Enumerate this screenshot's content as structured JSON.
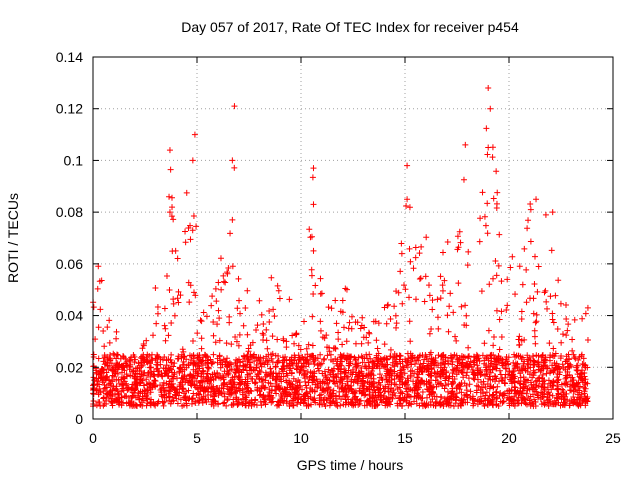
{
  "chart_data": {
    "type": "scatter",
    "title": "Day 057 of 2017, Rate Of TEC Index for receiver p454",
    "xlabel": "GPS time / hours",
    "ylabel": "ROTI / TECUs",
    "xlim": [
      0,
      25
    ],
    "ylim": [
      0,
      0.14
    ],
    "xticks": [
      "0",
      "5",
      "10",
      "15",
      "20",
      "25"
    ],
    "yticks": [
      "0",
      "0.02",
      "0.04",
      "0.06",
      "0.08",
      "0.1",
      "0.12",
      "0.14"
    ],
    "grid": true,
    "marker": "+",
    "color": "#ff0000",
    "series": [
      {
        "name": "ROTI",
        "envelope_x": [
          0,
          0.2,
          0.4,
          0.7,
          1.0,
          1.5,
          2.0,
          2.5,
          3.0,
          3.5,
          3.7,
          4.0,
          4.5,
          4.9,
          5.1,
          5.5,
          6.0,
          6.5,
          6.8,
          7.2,
          7.7,
          8.3,
          9.0,
          9.5,
          10.0,
          10.6,
          11.0,
          11.5,
          12.0,
          12.5,
          13.0,
          13.5,
          14.0,
          14.5,
          15.1,
          15.5,
          16.0,
          16.5,
          17.0,
          17.5,
          18.0,
          18.5,
          19.0,
          19.3,
          19.6,
          20.0,
          20.5,
          21.0,
          21.4,
          21.8,
          22.2,
          22.6,
          23.0,
          23.4,
          23.8
        ],
        "envelope_max": [
          0.05,
          0.065,
          0.06,
          0.04,
          0.035,
          0.03,
          0.025,
          0.03,
          0.055,
          0.06,
          0.1,
          0.07,
          0.09,
          0.11,
          0.06,
          0.04,
          0.065,
          0.06,
          0.12,
          0.05,
          0.05,
          0.055,
          0.06,
          0.045,
          0.04,
          0.097,
          0.05,
          0.045,
          0.06,
          0.045,
          0.04,
          0.04,
          0.045,
          0.045,
          0.098,
          0.07,
          0.08,
          0.06,
          0.07,
          0.07,
          0.106,
          0.08,
          0.128,
          0.11,
          0.08,
          0.065,
          0.06,
          0.085,
          0.065,
          0.08,
          0.06,
          0.05,
          0.04,
          0.045,
          0.05
        ],
        "baseline_range": [
          0.005,
          0.025
        ],
        "notable_points": [
          {
            "x": 3.7,
            "y": 0.104
          },
          {
            "x": 3.7,
            "y": 0.08
          },
          {
            "x": 4.9,
            "y": 0.11
          },
          {
            "x": 4.8,
            "y": 0.1
          },
          {
            "x": 6.8,
            "y": 0.121
          },
          {
            "x": 6.7,
            "y": 0.1
          },
          {
            "x": 6.7,
            "y": 0.077
          },
          {
            "x": 10.6,
            "y": 0.097
          },
          {
            "x": 10.6,
            "y": 0.083
          },
          {
            "x": 10.6,
            "y": 0.065
          },
          {
            "x": 15.1,
            "y": 0.098
          },
          {
            "x": 15.1,
            "y": 0.085
          },
          {
            "x": 17.9,
            "y": 0.106
          },
          {
            "x": 19.0,
            "y": 0.128
          },
          {
            "x": 19.1,
            "y": 0.12
          },
          {
            "x": 19.0,
            "y": 0.105
          },
          {
            "x": 21.3,
            "y": 0.085
          },
          {
            "x": 22.1,
            "y": 0.08
          }
        ]
      }
    ]
  }
}
